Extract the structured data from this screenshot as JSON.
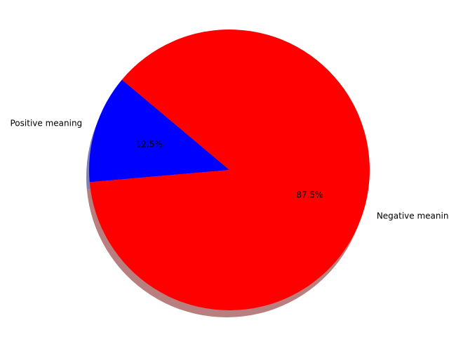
{
  "chart_data": {
    "type": "pie",
    "slices": [
      {
        "label": "Positive meaning",
        "value": 12.5,
        "pct_text": "12.5%",
        "color": "#0000ff"
      },
      {
        "label": "Negative meaning",
        "value": 87.5,
        "pct_text": "87.5%",
        "color": "#ff0000"
      }
    ],
    "start_angle_deg": 140,
    "direction": "counterclockwise",
    "shadow": true,
    "autopct": true
  }
}
